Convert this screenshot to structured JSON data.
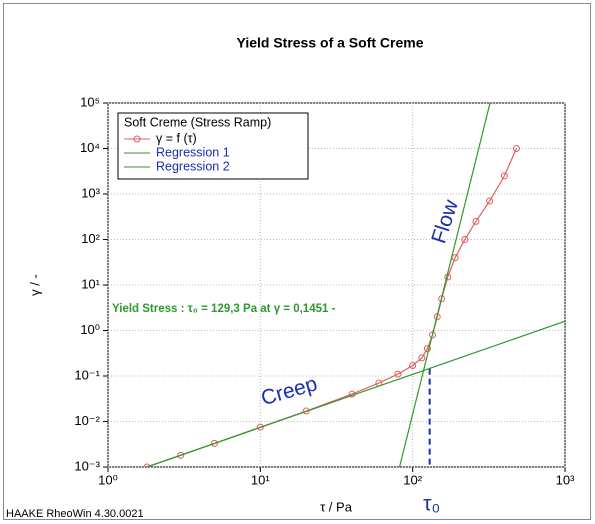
{
  "chart_data": {
    "type": "line",
    "title": "Yield Stress of a Soft Creme",
    "x_label": "τ / Pa",
    "y_label": "γ / -",
    "log_x": true,
    "log_y": true,
    "grid": true,
    "xlim": [
      1,
      1000
    ],
    "ylim": [
      0.001,
      100000
    ],
    "xticks": [
      {
        "value": 1,
        "label": "10⁰"
      },
      {
        "value": 10,
        "label": "10¹"
      },
      {
        "value": 100,
        "label": "10²"
      },
      {
        "value": 1000,
        "label": "10³"
      }
    ],
    "yticks": [
      {
        "value": 0.001,
        "label": "10⁻³"
      },
      {
        "value": 0.01,
        "label": "10⁻²"
      },
      {
        "value": 0.1,
        "label": "10⁻¹"
      },
      {
        "value": 1,
        "label": "10⁰"
      },
      {
        "value": 10,
        "label": "10¹"
      },
      {
        "value": 100,
        "label": "10²"
      },
      {
        "value": 1000,
        "label": "10³"
      },
      {
        "value": 10000,
        "label": "10⁴"
      },
      {
        "value": 100000,
        "label": "10⁵"
      }
    ],
    "legend_title": "Soft Creme (Stress Ramp)",
    "legend_position": "upper left",
    "series": [
      {
        "name": "γ = f (τ)",
        "color": "#e06060",
        "marker": "circle",
        "x": [
          1.8,
          3,
          5,
          10,
          20,
          40,
          60,
          80,
          100,
          115,
          125,
          135,
          145,
          155,
          170,
          190,
          220,
          260,
          320,
          400,
          480
        ],
        "values": [
          0.001,
          0.0018,
          0.0033,
          0.0075,
          0.017,
          0.04,
          0.07,
          0.11,
          0.17,
          0.25,
          0.4,
          0.8,
          2,
          5,
          15,
          40,
          100,
          250,
          700,
          2500,
          10000
        ]
      },
      {
        "name": "Regression 1",
        "color": "#2e9a2e",
        "x": [
          1.8,
          1000
        ],
        "values": [
          0.001,
          1.6
        ]
      },
      {
        "name": "Regression 2",
        "color": "#2e9a2e",
        "x": [
          82,
          322
        ],
        "values": [
          0.001,
          100000
        ]
      }
    ],
    "yield_point": {
      "x": 129.3,
      "y": 0.1451
    },
    "annotations": {
      "yield_text": "Yield Stress : τ₀  = 129,3 Pa at  γ = 0,1451 -",
      "creep": "Creep",
      "flow": "Flow",
      "tau0": "τ₀"
    },
    "footer": "HAAKE RheoWin 4.30.0021"
  }
}
